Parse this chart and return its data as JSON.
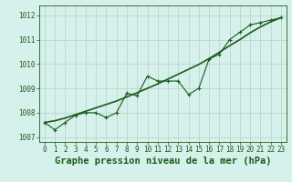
{
  "x": [
    0,
    1,
    2,
    3,
    4,
    5,
    6,
    7,
    8,
    9,
    10,
    11,
    12,
    13,
    14,
    15,
    16,
    17,
    18,
    19,
    20,
    21,
    22,
    23
  ],
  "y_line": [
    1007.6,
    1007.3,
    1007.6,
    1007.9,
    1008.0,
    1008.0,
    1007.8,
    1008.0,
    1008.8,
    1008.7,
    1009.5,
    1009.3,
    1009.3,
    1009.3,
    1008.75,
    1009.0,
    1010.2,
    1010.4,
    1011.0,
    1011.3,
    1011.6,
    1011.7,
    1011.8,
    1011.9
  ],
  "y_trend": [
    1007.6,
    1007.67,
    1007.78,
    1007.92,
    1008.06,
    1008.2,
    1008.34,
    1008.48,
    1008.65,
    1008.82,
    1009.0,
    1009.18,
    1009.38,
    1009.58,
    1009.78,
    1009.98,
    1010.22,
    1010.48,
    1010.75,
    1011.0,
    1011.28,
    1011.52,
    1011.73,
    1011.9
  ],
  "ylim": [
    1006.8,
    1012.4
  ],
  "yticks": [
    1007,
    1008,
    1009,
    1010,
    1011,
    1012
  ],
  "xticks": [
    0,
    1,
    2,
    3,
    4,
    5,
    6,
    7,
    8,
    9,
    10,
    11,
    12,
    13,
    14,
    15,
    16,
    17,
    18,
    19,
    20,
    21,
    22,
    23
  ],
  "line_color": "#1a5c1a",
  "bg_color": "#d6f0eb",
  "grid_color": "#b8d0c8",
  "xlabel": "Graphe pression niveau de la mer (hPa)",
  "xlabel_color": "#1a5c1a",
  "tick_label_color": "#1a5c1a",
  "tick_fontsize": 5.5,
  "xlabel_fontsize": 7.5
}
